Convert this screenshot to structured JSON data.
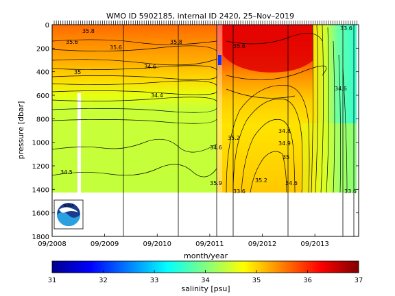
{
  "chart_data": {
    "type": "heatmap",
    "title": "WMO ID 5902185, internal ID 2420, 25–Nov–2019",
    "xlabel": "month/year",
    "ylabel": "pressure [dbar]",
    "x_ticks": [
      "09/2008",
      "09/2009",
      "09/2010",
      "09/2011",
      "09/2012",
      "09/2013"
    ],
    "y_ticks": [
      0,
      200,
      400,
      600,
      800,
      1000,
      1200,
      1400,
      1600,
      1800
    ],
    "ylim": [
      1800,
      0
    ],
    "y_reversed": true,
    "colorbar": {
      "label": "salinity [psu]",
      "range": [
        31,
        37
      ],
      "ticks": [
        31,
        32,
        33,
        34,
        35,
        36,
        37
      ],
      "colormap": "jet",
      "colors": [
        "#00008f",
        "#0000ff",
        "#0080ff",
        "#00ffff",
        "#80ff80",
        "#ffff00",
        "#ff8000",
        "#ff0000",
        "#800000"
      ]
    },
    "data_region": {
      "start": "2008-09",
      "end": "2014-06",
      "max_pressure_dbar": 1400,
      "description_values": {
        "surface_salinity_psu": 35.8,
        "upper_layer_2011_2012_psu": 36.2,
        "deep_layer_psu": 34.5,
        "late_2013_surface_psu": 34.0
      }
    },
    "contour_labels": [
      {
        "text": "35.6"
      },
      {
        "text": "35.6"
      },
      {
        "text": "35.8"
      },
      {
        "text": "35.8"
      },
      {
        "text": "35"
      },
      {
        "text": "34.6"
      },
      {
        "text": "34.5"
      },
      {
        "text": "34.4"
      },
      {
        "text": "34.6"
      },
      {
        "text": "35.2"
      },
      {
        "text": "34.8"
      },
      {
        "text": "34.9"
      },
      {
        "text": "35"
      },
      {
        "text": "35.2"
      },
      {
        "text": "34.6"
      },
      {
        "text": "34.6"
      },
      {
        "text": "33.6"
      },
      {
        "text": "35.6"
      },
      {
        "text": "33.6"
      },
      {
        "text": "35.9"
      },
      {
        "text": "33.6"
      }
    ],
    "grid": false,
    "legend": "none",
    "logo": "NOAA"
  }
}
